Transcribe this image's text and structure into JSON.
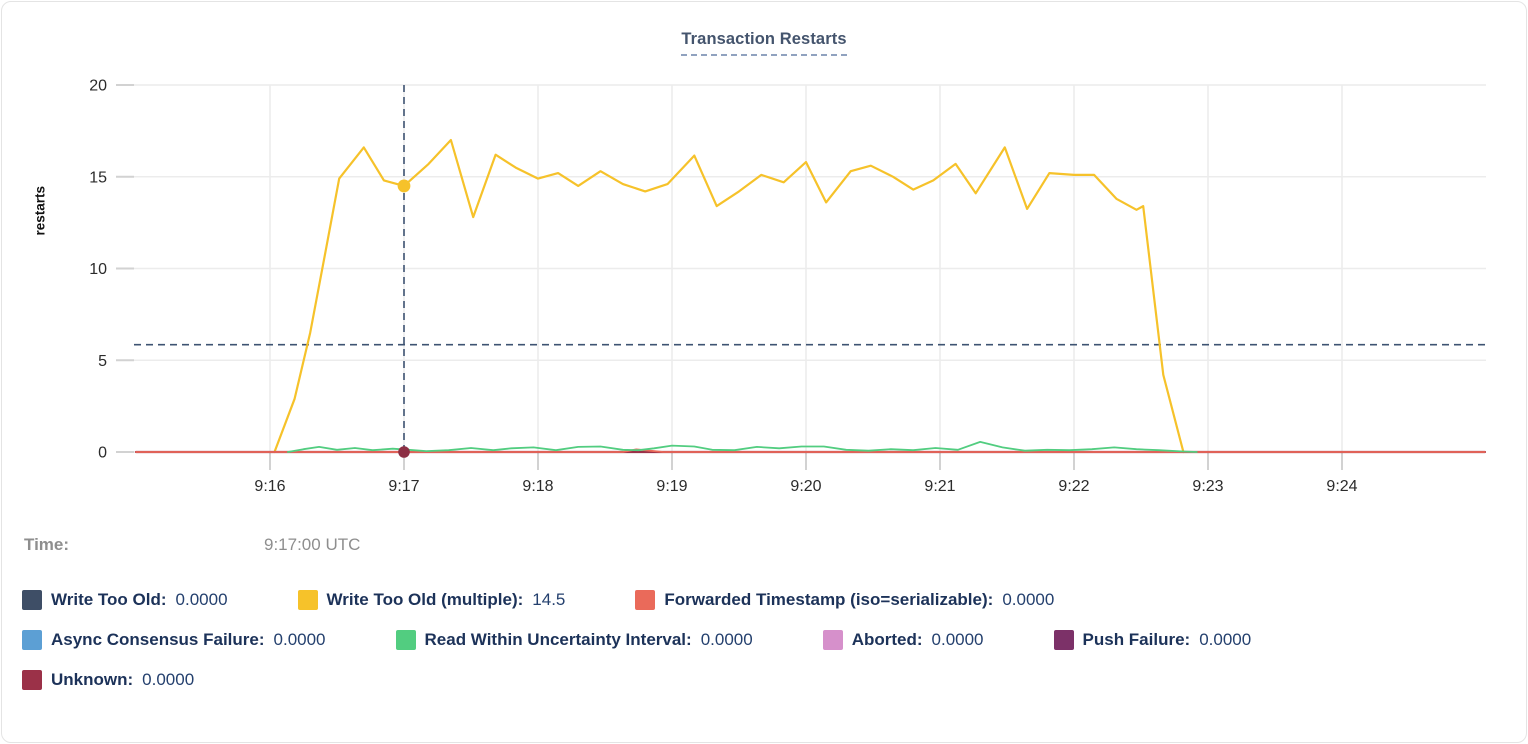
{
  "chart_data": {
    "type": "line",
    "title": "Transaction Restarts",
    "ylabel": "restarts",
    "ylim": [
      0,
      20
    ],
    "yticks": [
      0,
      5,
      10,
      15,
      20
    ],
    "xtick_labels": [
      "9:16",
      "9:17",
      "9:18",
      "9:19",
      "9:20",
      "9:21",
      "9:22",
      "9:23",
      "9:24"
    ],
    "x_window_minutes": 10,
    "grid": "on",
    "legend_position": "bottom",
    "hover": {
      "time_label": "Time:",
      "time_value": "9:17:00 UTC",
      "cursor_time": "9:17:00",
      "cursor_x_tick": "9:17",
      "crosshair_horizontal_value": 5.85,
      "dots": [
        {
          "series": "write-too-old-multiple",
          "value": 14.5
        },
        {
          "series": "unknown",
          "value": 0
        }
      ]
    },
    "series": [
      {
        "id": "write-too-old",
        "name": "Write Too Old",
        "color": "#3e4e66",
        "cursor_value": "0.0000",
        "points": [
          [
            -60,
            0
          ],
          [
            544,
            0
          ]
        ]
      },
      {
        "id": "write-too-old-multiple",
        "name": "Write Too Old (multiple)",
        "color": "#f6c22a",
        "cursor_value": "14.5",
        "points": [
          [
            2,
            0
          ],
          [
            11,
            2.9
          ],
          [
            18,
            6.5
          ],
          [
            25,
            11.0
          ],
          [
            31,
            14.9
          ],
          [
            42,
            16.6
          ],
          [
            51,
            14.8
          ],
          [
            60,
            14.5
          ],
          [
            71,
            15.7
          ],
          [
            81,
            17.0
          ],
          [
            91,
            12.8
          ],
          [
            101,
            16.2
          ],
          [
            110,
            15.5
          ],
          [
            120,
            14.9
          ],
          [
            129,
            15.2
          ],
          [
            138,
            14.5
          ],
          [
            148,
            15.3
          ],
          [
            158,
            14.6
          ],
          [
            168,
            14.2
          ],
          [
            178,
            14.6
          ],
          [
            190,
            16.15
          ],
          [
            200,
            13.4
          ],
          [
            210,
            14.2
          ],
          [
            220,
            15.1
          ],
          [
            230,
            14.7
          ],
          [
            240,
            15.8
          ],
          [
            249,
            13.6
          ],
          [
            260,
            15.3
          ],
          [
            269,
            15.6
          ],
          [
            279,
            15.0
          ],
          [
            288,
            14.3
          ],
          [
            297,
            14.8
          ],
          [
            307,
            15.7
          ],
          [
            316,
            14.1
          ],
          [
            329,
            16.6
          ],
          [
            339,
            13.25
          ],
          [
            349,
            15.2
          ],
          [
            360,
            15.1
          ],
          [
            369,
            15.1
          ],
          [
            379,
            13.8
          ],
          [
            388,
            13.2
          ],
          [
            391,
            13.4
          ],
          [
            400,
            4.2
          ],
          [
            409,
            0
          ]
        ]
      },
      {
        "id": "forwarded-timestamp",
        "name": "Forwarded Timestamp (iso=serializable)",
        "color": "#ea6a5a",
        "cursor_value": "0.0000",
        "points": [
          [
            -60,
            0
          ],
          [
            158,
            0
          ],
          [
            164,
            0.14
          ],
          [
            170,
            0.07
          ],
          [
            176,
            0
          ],
          [
            544,
            0
          ]
        ]
      },
      {
        "id": "async-consensus-failure",
        "name": "Async Consensus Failure",
        "color": "#5c9fd4",
        "cursor_value": "0.0000",
        "points": [
          [
            -60,
            0
          ],
          [
            544,
            0
          ]
        ]
      },
      {
        "id": "read-within-uncertainty-interval",
        "name": "Read Within Uncertainty Interval",
        "color": "#52cd80",
        "cursor_value": "0.0000",
        "points": [
          [
            8,
            0
          ],
          [
            15,
            0.15
          ],
          [
            22,
            0.28
          ],
          [
            30,
            0.12
          ],
          [
            38,
            0.22
          ],
          [
            46,
            0.1
          ],
          [
            55,
            0.18
          ],
          [
            62,
            0.12
          ],
          [
            70,
            0.05
          ],
          [
            80,
            0.1
          ],
          [
            90,
            0.22
          ],
          [
            100,
            0.1
          ],
          [
            108,
            0.2
          ],
          [
            118,
            0.25
          ],
          [
            128,
            0.1
          ],
          [
            138,
            0.28
          ],
          [
            148,
            0.3
          ],
          [
            158,
            0.12
          ],
          [
            165,
            0.1
          ],
          [
            172,
            0.2
          ],
          [
            180,
            0.35
          ],
          [
            190,
            0.3
          ],
          [
            198,
            0.12
          ],
          [
            208,
            0.1
          ],
          [
            218,
            0.28
          ],
          [
            228,
            0.2
          ],
          [
            238,
            0.3
          ],
          [
            248,
            0.3
          ],
          [
            258,
            0.12
          ],
          [
            268,
            0.07
          ],
          [
            278,
            0.15
          ],
          [
            288,
            0.1
          ],
          [
            298,
            0.22
          ],
          [
            308,
            0.12
          ],
          [
            318,
            0.55
          ],
          [
            328,
            0.25
          ],
          [
            338,
            0.07
          ],
          [
            348,
            0.12
          ],
          [
            358,
            0.1
          ],
          [
            368,
            0.15
          ],
          [
            378,
            0.25
          ],
          [
            388,
            0.15
          ],
          [
            398,
            0.1
          ],
          [
            408,
            0.03
          ],
          [
            415,
            0
          ]
        ]
      },
      {
        "id": "aborted",
        "name": "Aborted",
        "color": "#d690cb",
        "cursor_value": "0.0000",
        "points": [
          [
            -60,
            0
          ],
          [
            544,
            0
          ]
        ]
      },
      {
        "id": "push-failure",
        "name": "Push Failure",
        "color": "#7c3168",
        "cursor_value": "0.0000",
        "points": [
          [
            -60,
            0
          ],
          [
            544,
            0
          ]
        ]
      },
      {
        "id": "unknown",
        "name": "Unknown",
        "color": "#9b3148",
        "cursor_value": "0.0000",
        "points": [
          [
            -60,
            0
          ],
          [
            544,
            0
          ]
        ]
      }
    ],
    "legend_rows": [
      [
        "write-too-old",
        "write-too-old-multiple",
        "forwarded-timestamp"
      ],
      [
        "async-consensus-failure",
        "read-within-uncertainty-interval",
        "aborted",
        "push-failure"
      ],
      [
        "unknown"
      ]
    ]
  },
  "style": {
    "grid_color": "#ececec",
    "tick_color": "#d2d2d2",
    "axis_text_color": "#2b2b2b",
    "crosshair_color": "#3e5372",
    "dot_fill_unknown": "#8c2f44"
  }
}
